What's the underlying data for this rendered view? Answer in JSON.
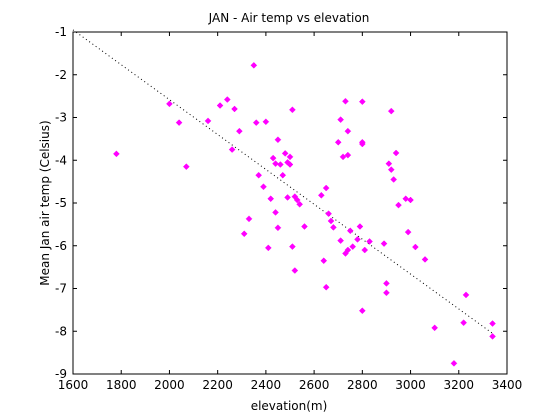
{
  "chart_data": {
    "type": "scatter",
    "title": "JAN - Air temp vs elevation",
    "xlabel": "elevation(m)",
    "ylabel": "Mean Jan air temp (Celsius)",
    "xlim": [
      1600,
      3400
    ],
    "ylim": [
      -9,
      -1
    ],
    "xticks": [
      1600,
      1800,
      2000,
      2200,
      2400,
      2600,
      2800,
      3000,
      3200,
      3400
    ],
    "yticks": [
      -9,
      -8,
      -7,
      -6,
      -5,
      -4,
      -3,
      -2,
      -1
    ],
    "grid": false,
    "marker_color": "#ff00ff",
    "trend_line": {
      "style": "dotted",
      "color": "#000000",
      "from": [
        1600,
        -0.95
      ],
      "to": [
        3340,
        -8.05
      ]
    },
    "series": [
      {
        "x": [
          1780,
          2000,
          2040,
          2070,
          2160,
          2210,
          2240,
          2260,
          2270,
          2290,
          2310,
          2330,
          2350,
          2360,
          2370,
          2390,
          2400,
          2410,
          2420,
          2430,
          2440,
          2440,
          2450,
          2450,
          2460,
          2470,
          2480,
          2490,
          2490,
          2500,
          2500,
          2510,
          2510,
          2520,
          2520,
          2530,
          2540,
          2560,
          2630,
          2640,
          2650,
          2650,
          2660,
          2670,
          2680,
          2700,
          2710,
          2710,
          2720,
          2730,
          2730,
          2740,
          2740,
          2740,
          2750,
          2760,
          2780,
          2790,
          2800,
          2800,
          2800,
          2800,
          2810,
          2830,
          2890,
          2900,
          2900,
          2910,
          2920,
          2920,
          2930,
          2940,
          2950,
          2980,
          2990,
          3000,
          3020,
          3060,
          3100,
          3180,
          3220,
          3230,
          3340,
          3340
        ],
        "y": [
          -3.85,
          -2.68,
          -3.12,
          -4.15,
          -3.08,
          -2.72,
          -2.58,
          -3.75,
          -2.8,
          -3.32,
          -5.72,
          -5.37,
          -1.78,
          -3.12,
          -4.35,
          -4.62,
          -3.1,
          -6.05,
          -4.9,
          -3.95,
          -4.08,
          -5.22,
          -3.52,
          -5.58,
          -4.1,
          -4.35,
          -3.84,
          -4.05,
          -4.87,
          -4.1,
          -3.92,
          -2.82,
          -6.02,
          -6.58,
          -4.85,
          -4.93,
          -5.03,
          -5.55,
          -4.82,
          -6.35,
          -4.65,
          -6.97,
          -5.25,
          -5.42,
          -5.57,
          -3.58,
          -5.88,
          -3.05,
          -3.92,
          -6.18,
          -2.62,
          -3.88,
          -3.32,
          -6.1,
          -5.65,
          -6.02,
          -5.85,
          -5.55,
          -2.63,
          -3.58,
          -3.62,
          -7.52,
          -6.1,
          -5.9,
          -5.95,
          -6.88,
          -7.1,
          -4.08,
          -4.22,
          -2.85,
          -4.45,
          -3.83,
          -5.05,
          -4.9,
          -5.68,
          -4.93,
          -6.03,
          -6.32,
          -7.92,
          -8.75,
          -7.8,
          -7.15,
          -7.82,
          -8.12
        ]
      }
    ]
  }
}
